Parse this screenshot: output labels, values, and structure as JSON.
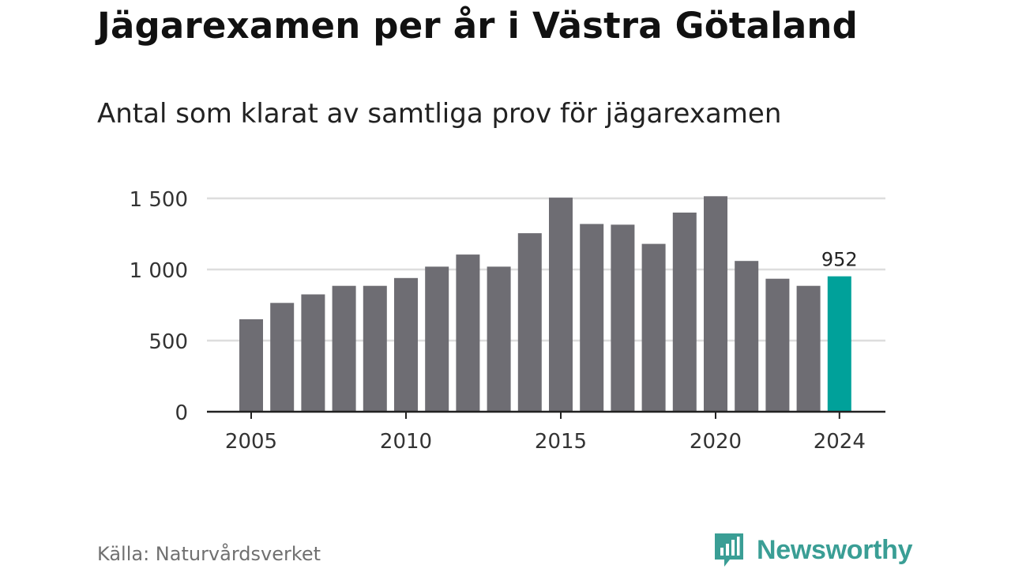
{
  "header": {
    "title": "Jägarexamen per år i Västra Götaland",
    "subtitle": "Antal som klarat av samtliga prov för jägarexamen"
  },
  "footer": {
    "source": "Källa: Naturvårdsverket",
    "brand": "Newsworthy"
  },
  "colors": {
    "bar": "#6e6d73",
    "highlight": "#00a19a",
    "grid": "#dddddd",
    "axis": "#222222",
    "brand": "#3a9e95"
  },
  "icons": {
    "brand_logo": "newsworthy-logo-icon"
  },
  "chart_data": {
    "type": "bar",
    "title": "Jägarexamen per år i Västra Götaland",
    "subtitle": "Antal som klarat av samtliga prov för jägarexamen",
    "categories": [
      2005,
      2006,
      2007,
      2008,
      2009,
      2010,
      2011,
      2012,
      2013,
      2014,
      2015,
      2016,
      2017,
      2018,
      2019,
      2020,
      2021,
      2022,
      2023,
      2024
    ],
    "values": [
      650,
      765,
      825,
      885,
      885,
      940,
      1020,
      1105,
      1020,
      1255,
      1505,
      1320,
      1315,
      1180,
      1400,
      1515,
      1060,
      935,
      885,
      952
    ],
    "highlight_index": 19,
    "data_labels": [
      {
        "category": 2024,
        "text": "952"
      }
    ],
    "xticks": [
      {
        "value": 2005,
        "label": "2005"
      },
      {
        "value": 2010,
        "label": "2010"
      },
      {
        "value": 2015,
        "label": "2015"
      },
      {
        "value": 2020,
        "label": "2020"
      },
      {
        "value": 2024,
        "label": "2024"
      }
    ],
    "yticks": [
      {
        "value": 0,
        "label": "0"
      },
      {
        "value": 500,
        "label": "500"
      },
      {
        "value": 1000,
        "label": "1 000"
      },
      {
        "value": 1500,
        "label": "1 500"
      }
    ],
    "ylim": [
      0,
      1500
    ],
    "grid": true,
    "xlabel": "",
    "ylabel": ""
  }
}
